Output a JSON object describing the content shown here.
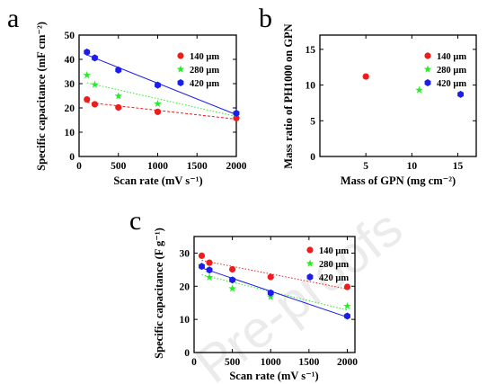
{
  "colors": {
    "s140": "#ee1c1c",
    "s280": "#22ee22",
    "s420": "#1c1ced"
  },
  "watermark": "Pre-proofs",
  "chart_data": [
    {
      "panel": "a",
      "type": "scatter",
      "xlabel": "Scan rate (mV s⁻¹)",
      "ylabel": "Specific capacitance (mF cm⁻²)",
      "xlim": [
        0,
        2000
      ],
      "ylim": [
        0,
        50
      ],
      "xticks": [
        0,
        500,
        1000,
        1500,
        2000
      ],
      "yticks": [
        0,
        10,
        20,
        30,
        40,
        50
      ],
      "legend_position": "top-right",
      "series": [
        {
          "name": "140 μm",
          "color_key": "s140",
          "marker": "circle",
          "fit": "dashed",
          "x": [
            100,
            200,
            500,
            1000,
            2000
          ],
          "y": [
            23.5,
            21.5,
            20.2,
            18.4,
            15.8
          ]
        },
        {
          "name": "280 μm",
          "color_key": "s280",
          "marker": "star",
          "fit": "dotted",
          "x": [
            100,
            200,
            500,
            1000,
            2000
          ],
          "y": [
            33.5,
            29.6,
            24.9,
            21.7,
            18.0
          ]
        },
        {
          "name": "420 μm",
          "color_key": "s420",
          "marker": "hexagon",
          "fit": "solid",
          "x": [
            100,
            200,
            500,
            1000,
            2000
          ],
          "y": [
            43.0,
            40.6,
            35.6,
            29.4,
            17.8
          ]
        }
      ]
    },
    {
      "panel": "b",
      "type": "scatter",
      "xlabel": "Mass of GPN (mg cm⁻²)",
      "ylabel": "Mass ratio of PH1000 on GPN",
      "xlim": [
        0,
        17
      ],
      "ylim": [
        0,
        17
      ],
      "xticks": [
        5,
        10,
        15
      ],
      "yticks": [
        0,
        5,
        10,
        15
      ],
      "legend_position": "top-right",
      "series": [
        {
          "name": "140 μm",
          "color_key": "s140",
          "marker": "circle",
          "fit": "none",
          "x": [
            5.0
          ],
          "y": [
            11.2
          ]
        },
        {
          "name": "280 μm",
          "color_key": "s280",
          "marker": "star",
          "fit": "none",
          "x": [
            10.8
          ],
          "y": [
            9.3
          ]
        },
        {
          "name": "420 μm",
          "color_key": "s420",
          "marker": "hexagon",
          "fit": "none",
          "x": [
            15.3
          ],
          "y": [
            8.7
          ]
        }
      ]
    },
    {
      "panel": "c",
      "type": "scatter",
      "xlabel": "Scan rate (mV s⁻¹)",
      "ylabel": "Specific capacitance (F g⁻¹)",
      "xlim": [
        0,
        2100
      ],
      "ylim": [
        0,
        35
      ],
      "xticks": [
        0,
        500,
        1000,
        1500,
        2000
      ],
      "yticks": [
        0,
        10,
        20,
        30
      ],
      "legend_position": "top-right",
      "series": [
        {
          "name": "140 μm",
          "color_key": "s140",
          "marker": "circle",
          "fit": "dotted",
          "x": [
            100,
            200,
            500,
            1000,
            2000
          ],
          "y": [
            29.2,
            27.1,
            25.1,
            22.8,
            19.8
          ]
        },
        {
          "name": "280 μm",
          "color_key": "s280",
          "marker": "star",
          "fit": "dotted",
          "x": [
            100,
            200,
            500,
            1000,
            2000
          ],
          "y": [
            26.0,
            22.7,
            19.3,
            16.8,
            14.0
          ]
        },
        {
          "name": "420 μm",
          "color_key": "s420",
          "marker": "hexagon",
          "fit": "solid",
          "x": [
            100,
            200,
            500,
            1000,
            2000
          ],
          "y": [
            26.0,
            24.9,
            21.9,
            18.0,
            11.0
          ]
        }
      ]
    }
  ]
}
